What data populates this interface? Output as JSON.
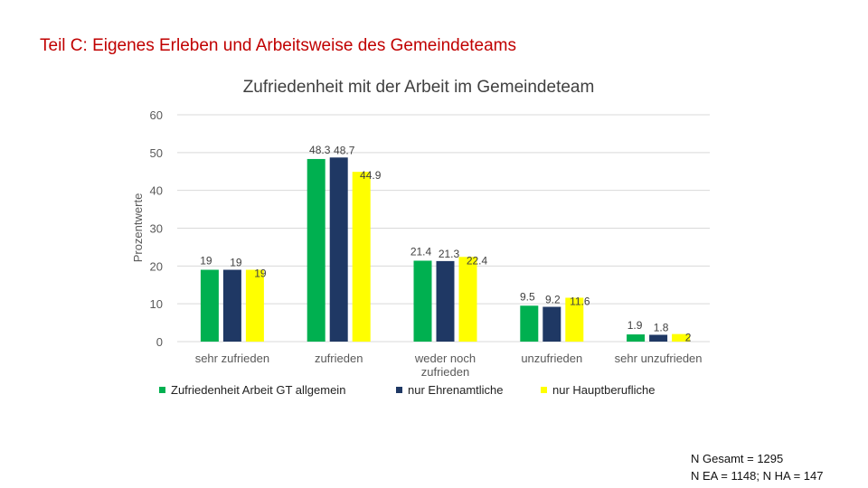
{
  "page": {
    "title": "Teil C: Eigenes Erleben und Arbeitsweise des Gemeindeteams"
  },
  "footnote": {
    "line1": "N Gesamt = 1295",
    "line2": "N EA = 1148; N HA = 147"
  },
  "colors": {
    "green": "#00b050",
    "navy": "#1f3864",
    "yellow": "#ffff00",
    "grid": "#d9d9d9",
    "axis_text": "#595959"
  },
  "chart_data": {
    "type": "bar",
    "title": "Zufriedenheit mit der Arbeit im Gemeindeteam",
    "ylabel": "Prozentwerte",
    "xlabel": "",
    "ylim": [
      0,
      60
    ],
    "yticks": [
      0,
      10,
      20,
      30,
      40,
      50,
      60
    ],
    "grid": true,
    "legend_position": "bottom",
    "categories": [
      "sehr zufrieden",
      "zufrieden",
      "weder noch zufrieden",
      "unzufrieden",
      "sehr unzufrieden"
    ],
    "series": [
      {
        "name": "Zufriedenheit Arbeit GT allgemein",
        "color": "#00b050",
        "values": [
          19,
          48.3,
          21.4,
          9.5,
          1.9
        ],
        "labels": [
          "19",
          "48.3",
          "21.4",
          "9.5",
          "1.9"
        ]
      },
      {
        "name": "nur Ehrenamtliche",
        "color": "#1f3864",
        "values": [
          19,
          48.7,
          21.3,
          9.2,
          1.8
        ],
        "labels": [
          "19",
          "48.7",
          "21.3",
          "9.2",
          "1.8"
        ]
      },
      {
        "name": "nur Hauptberufliche",
        "color": "#ffff00",
        "values": [
          19,
          44.9,
          22.4,
          11.6,
          2
        ],
        "labels": [
          "19",
          "44.9",
          "22.4",
          "11.6",
          "2"
        ]
      }
    ]
  }
}
